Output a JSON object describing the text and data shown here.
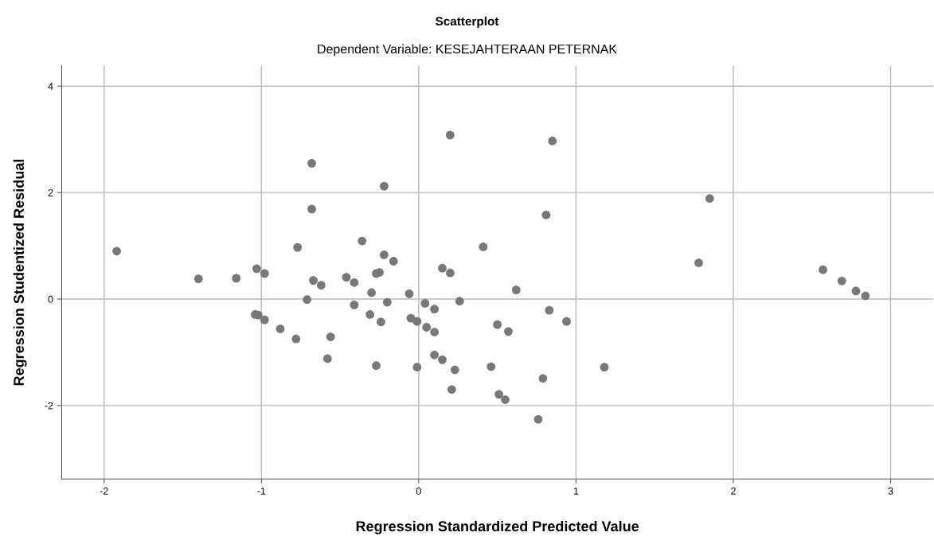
{
  "chart_data": {
    "type": "scatter",
    "title": "Scatterplot",
    "subtitle": "Dependent Variable: KESEJAHTERAAN PETERNAK",
    "xlabel": "Regression Standardized Predicted Value",
    "ylabel": "Regression Studentized Residual",
    "xlim": [
      -2.27,
      3.27
    ],
    "ylim": [
      -3.38,
      4.38
    ],
    "xticks": [
      -2,
      -1,
      0,
      1,
      2,
      3
    ],
    "yticks": [
      -2,
      0,
      2,
      4
    ],
    "grid": true,
    "marker": "circle",
    "series": [
      {
        "color": "#787878",
        "x": [
          -0.68,
          -0.68,
          -1.92,
          -0.77,
          -0.36,
          -1.4,
          -1.16,
          -1.03,
          -0.98,
          -0.67,
          -0.62,
          -0.46,
          -0.41,
          -0.3,
          -0.71,
          -0.41,
          -0.31,
          -1.04,
          -1.02,
          -0.98,
          -0.88,
          -0.78,
          -0.56,
          -0.58,
          -0.27,
          0.2,
          0.85,
          -0.22,
          0.81,
          0.41,
          -0.22,
          -0.16,
          -0.27,
          -0.25,
          0.15,
          0.2,
          -0.06,
          0.62,
          -0.24,
          -0.2,
          0.04,
          0.1,
          0.26,
          -0.05,
          -0.01,
          0.05,
          0.1,
          0.5,
          0.57,
          0.83,
          0.94,
          -0.01,
          0.1,
          0.15,
          0.23,
          0.46,
          1.18,
          0.79,
          0.21,
          0.51,
          0.55,
          0.76,
          1.85,
          1.78,
          2.57,
          2.69,
          2.78,
          2.84
        ],
        "values": [
          2.55,
          1.69,
          0.9,
          0.97,
          1.09,
          0.38,
          0.39,
          0.57,
          0.48,
          0.35,
          0.26,
          0.41,
          0.31,
          0.12,
          -0.01,
          -0.11,
          -0.29,
          -0.29,
          -0.3,
          -0.39,
          -0.56,
          -0.75,
          -0.71,
          -1.12,
          -1.25,
          3.08,
          2.97,
          2.12,
          1.58,
          0.98,
          0.83,
          0.71,
          0.48,
          0.5,
          0.58,
          0.49,
          0.1,
          0.17,
          -0.43,
          -0.06,
          -0.08,
          -0.19,
          -0.04,
          -0.36,
          -0.42,
          -0.53,
          -0.62,
          -0.48,
          -0.61,
          -0.21,
          -0.42,
          -1.28,
          -1.05,
          -1.14,
          -1.33,
          -1.27,
          -1.28,
          -1.49,
          -1.7,
          -1.79,
          -1.89,
          -2.26,
          1.89,
          0.68,
          0.55,
          0.34,
          0.15,
          0.06
        ]
      }
    ]
  }
}
